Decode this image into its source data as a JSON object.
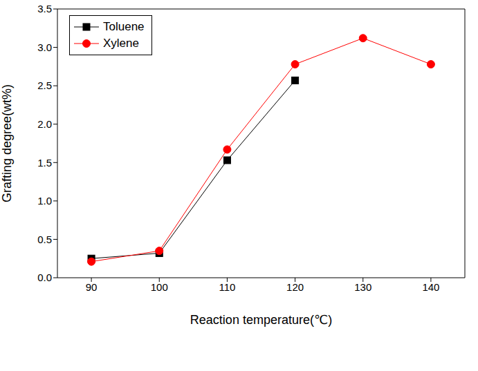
{
  "chart_data": {
    "type": "line",
    "x_label": "Reaction temperature(℃)",
    "y_label": "Grafting degree(wt%)",
    "x": [
      90,
      100,
      110,
      120,
      130,
      140
    ],
    "series": [
      {
        "name": "Toluene",
        "color": "#000000",
        "marker": "square",
        "values": [
          0.25,
          0.32,
          1.53,
          2.57,
          null,
          null
        ]
      },
      {
        "name": "Xylene",
        "color": "#ff0000",
        "marker": "circle",
        "values": [
          0.21,
          0.35,
          1.67,
          2.78,
          3.12,
          2.78
        ]
      }
    ],
    "xlim": [
      85,
      145
    ],
    "xticks": [
      90,
      100,
      110,
      120,
      130,
      140
    ],
    "ylim": [
      0,
      3.5
    ],
    "yticks": [
      {
        "value": 0,
        "label": "0.0"
      },
      0.5,
      {
        "value": 1,
        "label": "1.0"
      },
      1.5,
      {
        "value": 2,
        "label": "2.0"
      },
      2.5,
      {
        "value": 3,
        "label": "3.0"
      },
      3.5
    ],
    "grid": false,
    "legend": "upper left"
  }
}
